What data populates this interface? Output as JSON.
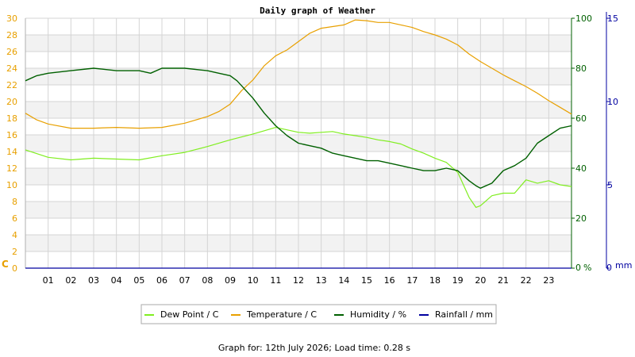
{
  "chart_data": {
    "type": "line",
    "title": "Daily graph of Weather",
    "footer": "Graph for: 12th July 2026; Load time: 0.28 s",
    "x_tick_labels": [
      "01",
      "02",
      "03",
      "04",
      "05",
      "06",
      "07",
      "08",
      "09",
      "10",
      "11",
      "12",
      "13",
      "14",
      "15",
      "16",
      "17",
      "18",
      "19",
      "20",
      "21",
      "22",
      "23"
    ],
    "x_range": [
      0,
      24
    ],
    "y_axes": {
      "left": {
        "unit": "C",
        "range": [
          0,
          30
        ],
        "ticks": [
          0,
          2,
          4,
          6,
          8,
          10,
          12,
          14,
          16,
          18,
          20,
          22,
          24,
          26,
          28,
          30
        ],
        "color": "#e8a000"
      },
      "right1": {
        "unit": "%",
        "range": [
          0,
          100
        ],
        "ticks": [
          0,
          20,
          40,
          60,
          80,
          100
        ],
        "color": "#006000"
      },
      "right2": {
        "unit": "mm",
        "range": [
          0,
          15
        ],
        "ticks": [
          0,
          5,
          10,
          15
        ],
        "color": "#0000a0"
      }
    },
    "grid": true,
    "legend_position": "bottom",
    "series": [
      {
        "name": "Dew Point / C",
        "axis": "left",
        "color": "#80ee20",
        "x": [
          0,
          1,
          2,
          3,
          4,
          5,
          6,
          7,
          8,
          9,
          10,
          10.5,
          11,
          11.5,
          12,
          12.5,
          13,
          13.5,
          14,
          14.5,
          15,
          15.5,
          16,
          16.5,
          17,
          17.5,
          18,
          18.5,
          19,
          19.5,
          19.8,
          20,
          20.5,
          21,
          21.5,
          22,
          22.5,
          23,
          23.5,
          24
        ],
        "y": [
          14.2,
          13.3,
          13.0,
          13.2,
          13.1,
          13.0,
          13.5,
          13.9,
          14.6,
          15.4,
          16.1,
          16.5,
          16.9,
          16.6,
          16.3,
          16.2,
          16.3,
          16.4,
          16.1,
          15.9,
          15.7,
          15.4,
          15.2,
          14.9,
          14.3,
          13.8,
          13.2,
          12.7,
          11.5,
          8.5,
          7.3,
          7.5,
          8.7,
          9.0,
          9.0,
          10.6,
          10.2,
          10.5,
          10.0,
          9.8
        ]
      },
      {
        "name": "Temperature / C",
        "axis": "left",
        "color": "#e8a000",
        "x": [
          0,
          0.5,
          1,
          2,
          3,
          4,
          5,
          6,
          7,
          8,
          8.5,
          9,
          9.5,
          10,
          10.5,
          11,
          11.5,
          12,
          12.5,
          13,
          13.5,
          14,
          14.5,
          15,
          15.5,
          16,
          16.5,
          17,
          17.5,
          18,
          18.5,
          19,
          19.5,
          20,
          20.5,
          21,
          21.5,
          22,
          22.5,
          23,
          23.5,
          24
        ],
        "y": [
          18.6,
          17.8,
          17.3,
          16.8,
          16.8,
          16.9,
          16.8,
          16.9,
          17.4,
          18.2,
          18.8,
          19.7,
          21.3,
          22.6,
          24.3,
          25.5,
          26.2,
          27.2,
          28.2,
          28.8,
          29.0,
          29.2,
          29.8,
          29.7,
          29.5,
          29.5,
          29.2,
          28.9,
          28.4,
          28.0,
          27.5,
          26.8,
          25.7,
          24.8,
          24.0,
          23.2,
          22.5,
          21.8,
          21.0,
          20.1,
          19.3,
          18.5
        ]
      },
      {
        "name": "Humidity / %",
        "axis": "right1",
        "color": "#006000",
        "x": [
          0,
          0.5,
          1,
          2,
          3,
          4,
          5,
          5.5,
          6,
          7,
          8,
          8.5,
          9,
          9.3,
          9.6,
          10,
          10.5,
          11,
          11.5,
          12,
          12.5,
          13,
          13.5,
          14,
          14.5,
          15,
          15.5,
          16,
          16.5,
          17,
          17.5,
          18,
          18.5,
          19,
          19.5,
          19.8,
          20,
          20.5,
          21,
          21.5,
          22,
          22.5,
          23,
          23.5,
          24
        ],
        "y": [
          75,
          77,
          78,
          79,
          80,
          79,
          79,
          78,
          80,
          80,
          79,
          78,
          77,
          75,
          72,
          68,
          62,
          57,
          53,
          50,
          49,
          48,
          46,
          45,
          44,
          43,
          43,
          42,
          41,
          40,
          39,
          39,
          40,
          39,
          35,
          33,
          32,
          34,
          39,
          41,
          44,
          50,
          53,
          56,
          57
        ]
      },
      {
        "name": "Rainfall / mm",
        "axis": "right2",
        "color": "#0000a0",
        "x": [
          0,
          24
        ],
        "y": [
          0,
          0
        ]
      }
    ]
  }
}
